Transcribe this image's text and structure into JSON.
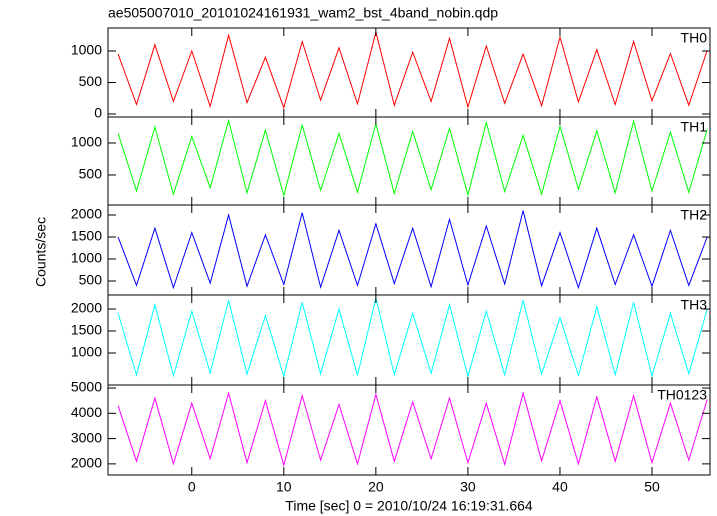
{
  "chart_data": [
    {
      "type": "line",
      "title": "ae505007010_20101024161931_wam2_bst_4band_nobin.qdp",
      "label": "TH0",
      "color": "#ff0000",
      "x": [
        -8,
        -6,
        -4,
        -2,
        0,
        2,
        4,
        6,
        8,
        10,
        12,
        14,
        16,
        18,
        20,
        22,
        24,
        26,
        28,
        30,
        32,
        34,
        36,
        38,
        40,
        42,
        44,
        46,
        48,
        50,
        52,
        54,
        56
      ],
      "values": [
        950,
        150,
        1100,
        200,
        1000,
        120,
        1250,
        180,
        900,
        100,
        1150,
        220,
        1050,
        160,
        1300,
        140,
        980,
        200,
        1200,
        110,
        1080,
        170,
        950,
        130,
        1220,
        190,
        1020,
        150,
        1150,
        210,
        960,
        140,
        1010
      ],
      "xlim": [
        -9.1,
        56.3
      ],
      "xticks": [
        0,
        10,
        20,
        30,
        40,
        50
      ],
      "ylim": [
        -48,
        1365
      ],
      "yticks": [
        0,
        500,
        1000
      ]
    },
    {
      "type": "line",
      "label": "TH1",
      "color": "#00ff00",
      "x": [
        -8,
        -6,
        -4,
        -2,
        0,
        2,
        4,
        6,
        8,
        10,
        12,
        14,
        16,
        18,
        20,
        22,
        24,
        26,
        28,
        30,
        32,
        34,
        36,
        38,
        40,
        42,
        44,
        46,
        48,
        50,
        52,
        54,
        56
      ],
      "values": [
        1150,
        250,
        1250,
        200,
        1100,
        300,
        1350,
        220,
        1200,
        180,
        1280,
        260,
        1150,
        230,
        1300,
        210,
        1180,
        270,
        1230,
        190,
        1320,
        240,
        1120,
        200,
        1260,
        280,
        1190,
        220,
        1340,
        250,
        1170,
        230,
        1210
      ],
      "xlim": [
        -9.1,
        56.3
      ],
      "xticks": [
        0,
        10,
        20,
        30,
        40,
        50
      ],
      "ylim": [
        31,
        1406
      ],
      "yticks": [
        500,
        1000
      ]
    },
    {
      "type": "line",
      "label": "TH2",
      "color": "#0000ff",
      "ylabel": "Counts/sec",
      "x": [
        -8,
        -6,
        -4,
        -2,
        0,
        2,
        4,
        6,
        8,
        10,
        12,
        14,
        16,
        18,
        20,
        22,
        24,
        26,
        28,
        30,
        32,
        34,
        36,
        38,
        40,
        42,
        44,
        46,
        48,
        50,
        52,
        54,
        56
      ],
      "values": [
        1500,
        400,
        1700,
        350,
        1600,
        450,
        2000,
        380,
        1550,
        420,
        2050,
        360,
        1650,
        400,
        1800,
        440,
        1700,
        370,
        1900,
        410,
        1750,
        430,
        2100,
        390,
        1600,
        350,
        1700,
        420,
        1550,
        380,
        1650,
        400,
        1500
      ],
      "xlim": [
        -9.1,
        56.3
      ],
      "xticks": [
        0,
        10,
        20,
        30,
        40,
        50
      ],
      "ylim": [
        182,
        2227
      ],
      "yticks": [
        500,
        1000,
        1500,
        2000
      ]
    },
    {
      "type": "line",
      "label": "TH3",
      "color": "#00ffff",
      "x": [
        -8,
        -6,
        -4,
        -2,
        0,
        2,
        4,
        6,
        8,
        10,
        12,
        14,
        16,
        18,
        20,
        22,
        24,
        26,
        28,
        30,
        32,
        34,
        36,
        38,
        40,
        42,
        44,
        46,
        48,
        50,
        52,
        54,
        56
      ],
      "values": [
        1900,
        500,
        2100,
        480,
        1950,
        550,
        2200,
        520,
        1850,
        470,
        2150,
        530,
        2000,
        490,
        2250,
        510,
        1900,
        540,
        2100,
        470,
        1950,
        500,
        2200,
        520,
        1800,
        490,
        2050,
        510,
        2150,
        480,
        1900,
        530,
        2000
      ],
      "xlim": [
        -9.1,
        56.3
      ],
      "xticks": [
        0,
        10,
        20,
        30,
        40,
        50
      ],
      "ylim": [
        273,
        2318
      ],
      "yticks": [
        1000,
        1500,
        2000
      ]
    },
    {
      "type": "line",
      "label": "TH0123",
      "color": "#ff00ff",
      "xlabel": "Time [sec] 0 = 2010/10/24 16:19:31.664",
      "x": [
        -8,
        -6,
        -4,
        -2,
        0,
        2,
        4,
        6,
        8,
        10,
        12,
        14,
        16,
        18,
        20,
        22,
        24,
        26,
        28,
        30,
        32,
        34,
        36,
        38,
        40,
        42,
        44,
        46,
        48,
        50,
        52,
        54,
        56
      ],
      "values": [
        4300,
        2100,
        4600,
        2000,
        4400,
        2200,
        4800,
        2050,
        4500,
        1950,
        4700,
        2150,
        4350,
        2000,
        4750,
        2100,
        4450,
        2200,
        4600,
        2050,
        4400,
        1980,
        4800,
        2120,
        4500,
        2000,
        4650,
        2100,
        4700,
        2050,
        4400,
        2150,
        4550
      ],
      "xlim": [
        -9.1,
        56.3
      ],
      "xticks": [
        0,
        10,
        20,
        30,
        40,
        50
      ],
      "ylim": [
        1560,
        5120
      ],
      "yticks": [
        2000,
        3000,
        4000,
        5000
      ]
    }
  ]
}
